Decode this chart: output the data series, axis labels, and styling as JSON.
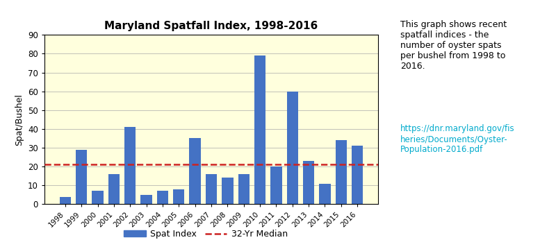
{
  "title": "Maryland Spatfall Index, 1998-2016",
  "years": [
    "1998",
    "1999",
    "2000",
    "2001",
    "2002",
    "2003",
    "2004",
    "2005",
    "2006",
    "2007",
    "2008",
    "2009",
    "2010",
    "2011",
    "2012",
    "2013",
    "2014",
    "2015",
    "2016"
  ],
  "values": [
    4,
    29,
    7,
    16,
    41,
    5,
    7,
    8,
    35,
    16,
    14,
    16,
    79,
    20,
    60,
    23,
    11,
    34,
    31
  ],
  "median": 21,
  "bar_color": "#4472C4",
  "median_color": "#CC2222",
  "background_color": "#FFFFDD",
  "ylabel": "Spat/Bushel",
  "ylim": [
    0,
    90
  ],
  "yticks": [
    0,
    10,
    20,
    30,
    40,
    50,
    60,
    70,
    80,
    90
  ],
  "legend_bar_label": "Spat Index",
  "legend_line_label": "32-Yr Median",
  "annotation_text": "This graph shows recent\nspatfall indices - the\nnumber of oyster spats\nper bushel from 1998 to\n2016.",
  "link_text": "https://dnr.maryland.gov/fis\nheries/Documents/Oyster-\nPopulation-2016.pdf",
  "link_color": "#00AACC",
  "fig_width": 8.0,
  "fig_height": 3.59
}
